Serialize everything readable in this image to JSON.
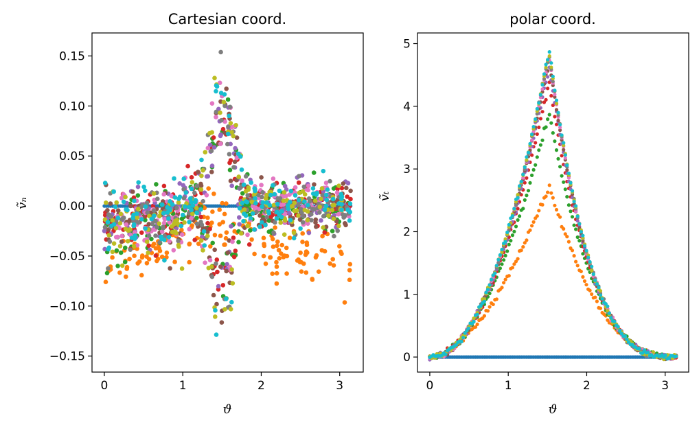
{
  "chart_data": [
    {
      "type": "scatter",
      "title": "Cartesian coord.",
      "xlabel": "ϑ",
      "ylabel": "ṽₙ",
      "xlim": [
        -0.157,
        3.3
      ],
      "ylim": [
        -0.166,
        0.173
      ],
      "xticks": [
        0,
        1,
        2,
        3
      ],
      "yticks": [
        0.15,
        0.1,
        0.05,
        0.0,
        -0.05,
        -0.1,
        -0.15
      ],
      "xtick_labels": [
        "0",
        "1",
        "2",
        "3"
      ],
      "ytick_labels": [
        "0.15",
        "0.10",
        "0.05",
        "0.00",
        "−0.05",
        "−0.10",
        "−0.15"
      ],
      "grid": false,
      "series_colors": [
        "#1f77b4",
        "#ff7f0e",
        "#2ca02c",
        "#d62728",
        "#9467bd",
        "#8c564b",
        "#e377c2",
        "#7f7f7f",
        "#bcbd22",
        "#17becf"
      ],
      "series_profile": {
        "x_range": [
          0,
          3.14
        ],
        "zero_series_color": "#1f77b4",
        "orange_offset_left": -0.06,
        "orange_offset_right": -0.045,
        "peak_center": 1.5,
        "peak_max": 0.158,
        "trough_min": -0.15
      }
    },
    {
      "type": "scatter",
      "title": "polar coord.",
      "xlabel": "ϑ",
      "ylabel": "ṽₜ",
      "xlim": [
        -0.157,
        3.3
      ],
      "ylim": [
        -0.24,
        5.17
      ],
      "xticks": [
        0,
        1,
        2,
        3
      ],
      "yticks": [
        0,
        1,
        2,
        3,
        4,
        5
      ],
      "xtick_labels": [
        "0",
        "1",
        "2",
        "3"
      ],
      "ytick_labels": [
        "0",
        "1",
        "2",
        "3",
        "4",
        "5"
      ],
      "grid": false,
      "series": [
        {
          "color": "#1f77b4",
          "peak": 0.0,
          "peak_x": 1.55
        },
        {
          "color": "#ff7f0e",
          "peak": 2.74,
          "peak_x": 1.52
        },
        {
          "color": "#2ca02c",
          "peak": 3.9,
          "peak_x": 1.52
        },
        {
          "color": "#d62728",
          "peak": 4.4,
          "peak_x": 1.52
        },
        {
          "color": "#9467bd",
          "peak": 4.65,
          "peak_x": 1.52
        },
        {
          "color": "#8c564b",
          "peak": 4.75,
          "peak_x": 1.52
        },
        {
          "color": "#e377c2",
          "peak": 4.82,
          "peak_x": 1.52
        },
        {
          "color": "#7f7f7f",
          "peak": 4.86,
          "peak_x": 1.52
        },
        {
          "color": "#bcbd22",
          "peak": 4.88,
          "peak_x": 1.52
        },
        {
          "color": "#17becf",
          "peak": 4.91,
          "peak_x": 1.52
        }
      ]
    }
  ]
}
